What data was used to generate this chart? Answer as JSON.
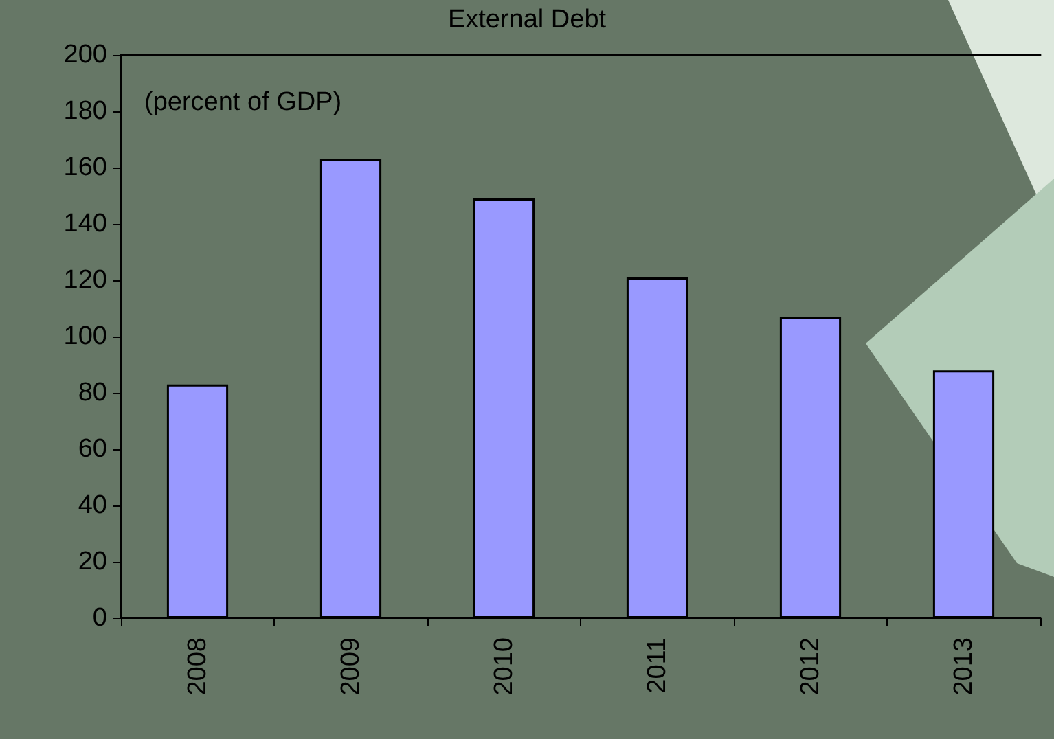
{
  "chart_data": {
    "type": "bar",
    "title": "External Debt",
    "annotations": [
      "(percent of GDP)"
    ],
    "categories": [
      "2008",
      "2009",
      "2010",
      "2011",
      "2012",
      "2013"
    ],
    "values": [
      83,
      163,
      149,
      121,
      107,
      88
    ],
    "color": "#9999ff",
    "ylim": [
      0,
      200
    ],
    "yticks": [
      0,
      20,
      40,
      60,
      80,
      100,
      120,
      140,
      160,
      180,
      200
    ],
    "grid": false
  }
}
